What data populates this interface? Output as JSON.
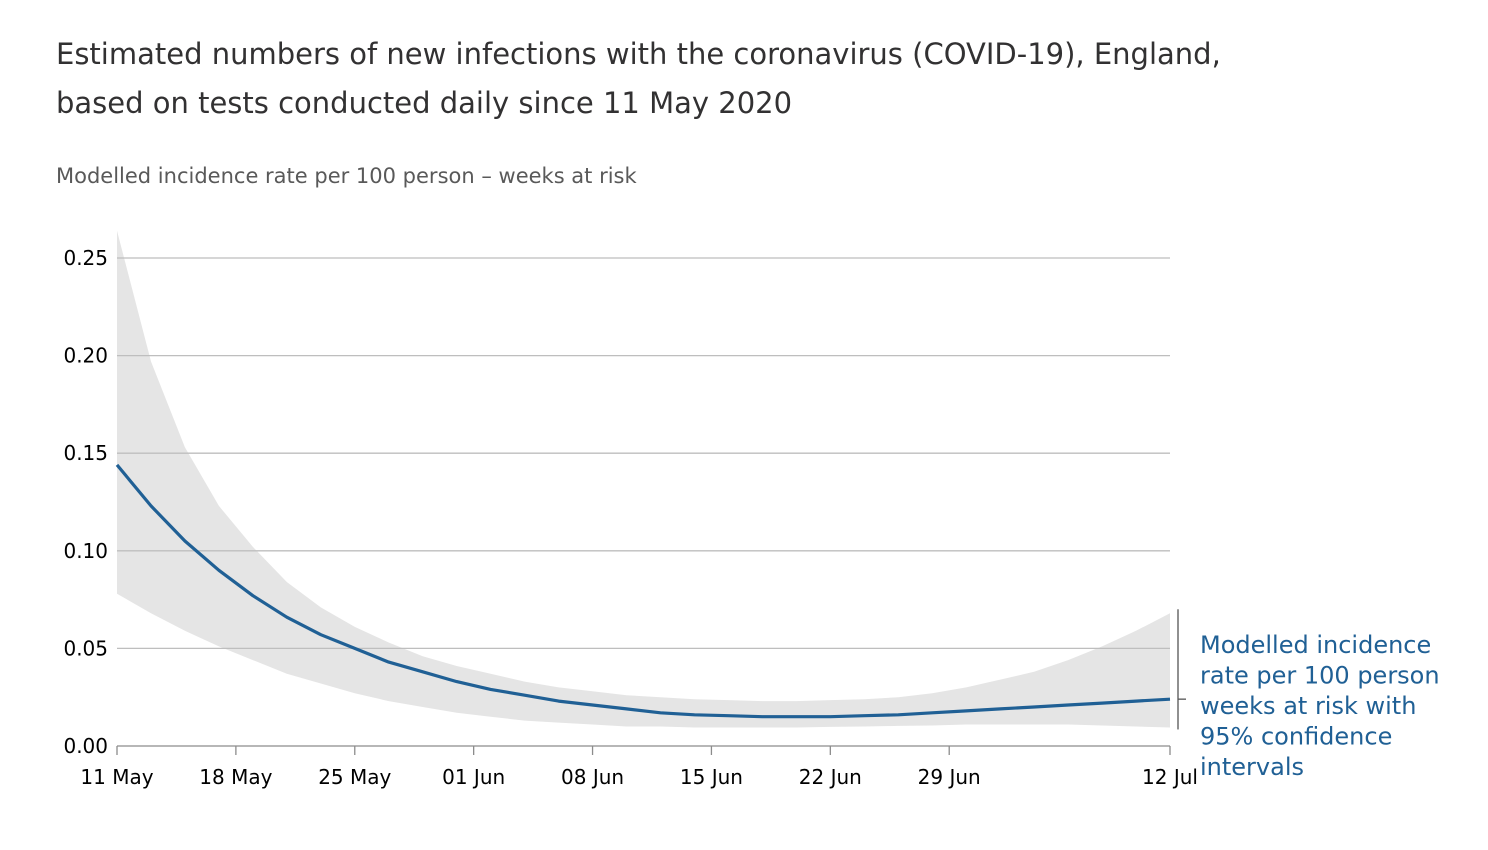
{
  "colors": {
    "line": "#206095",
    "band": "#e5e5e5",
    "grid": "#bebebe",
    "title": "#323132",
    "subtitle": "#595959"
  },
  "chart_data": {
    "type": "line",
    "title_lines": [
      "Estimated numbers of new infections with the coronavirus (COVID-19), England,",
      "based on tests conducted daily since 11 May 2020"
    ],
    "ylabel": "Modelled incidence rate per 100 person – weeks at risk",
    "xlabel": "",
    "ylim": [
      0,
      0.25
    ],
    "yticks": [
      0.0,
      0.05,
      0.1,
      0.15,
      0.2,
      0.25
    ],
    "ytick_labels": [
      "0.00",
      "0.05",
      "0.10",
      "0.15",
      "0.20",
      "0.25"
    ],
    "x_range_days": [
      0,
      62
    ],
    "xticks": [
      {
        "day": 0,
        "label": "11 May"
      },
      {
        "day": 7,
        "label": "18 May"
      },
      {
        "day": 14,
        "label": "25 May"
      },
      {
        "day": 21,
        "label": "01 Jun"
      },
      {
        "day": 28,
        "label": "08 Jun"
      },
      {
        "day": 35,
        "label": "15 Jun"
      },
      {
        "day": 42,
        "label": "22 Jun"
      },
      {
        "day": 49,
        "label": "29 Jun"
      },
      {
        "day": 62,
        "label": "12 Jul"
      }
    ],
    "grid": true,
    "x_days": [
      0,
      2,
      4,
      6,
      8,
      10,
      12,
      14,
      16,
      18,
      20,
      22,
      24,
      26,
      28,
      30,
      32,
      34,
      36,
      38,
      40,
      42,
      44,
      46,
      48,
      50,
      52,
      54,
      56,
      58,
      60,
      62
    ],
    "series": [
      {
        "name": "Modelled incidence rate per 100 person weeks at risk with 95% confidence intervals",
        "values": [
          0.144,
          0.123,
          0.105,
          0.09,
          0.077,
          0.066,
          0.057,
          0.05,
          0.043,
          0.038,
          0.033,
          0.029,
          0.026,
          0.023,
          0.021,
          0.019,
          0.017,
          0.016,
          0.0155,
          0.015,
          0.015,
          0.015,
          0.0155,
          0.016,
          0.017,
          0.018,
          0.019,
          0.02,
          0.021,
          0.022,
          0.023,
          0.024
        ],
        "lower": [
          0.078,
          0.068,
          0.059,
          0.051,
          0.044,
          0.037,
          0.032,
          0.027,
          0.023,
          0.02,
          0.017,
          0.015,
          0.013,
          0.012,
          0.011,
          0.01,
          0.01,
          0.0095,
          0.0095,
          0.0095,
          0.0095,
          0.0098,
          0.01,
          0.0103,
          0.0105,
          0.011,
          0.011,
          0.011,
          0.011,
          0.0105,
          0.01,
          0.0095
        ],
        "upper": [
          0.264,
          0.197,
          0.153,
          0.123,
          0.102,
          0.084,
          0.071,
          0.061,
          0.053,
          0.046,
          0.041,
          0.037,
          0.033,
          0.03,
          0.028,
          0.026,
          0.025,
          0.024,
          0.0235,
          0.023,
          0.023,
          0.0235,
          0.024,
          0.025,
          0.027,
          0.03,
          0.034,
          0.038,
          0.044,
          0.051,
          0.059,
          0.068
        ]
      }
    ],
    "annotation_lines": [
      "Modelled incidence",
      "rate per 100 person",
      "weeks at risk with",
      "95% confidence",
      "intervals"
    ]
  }
}
